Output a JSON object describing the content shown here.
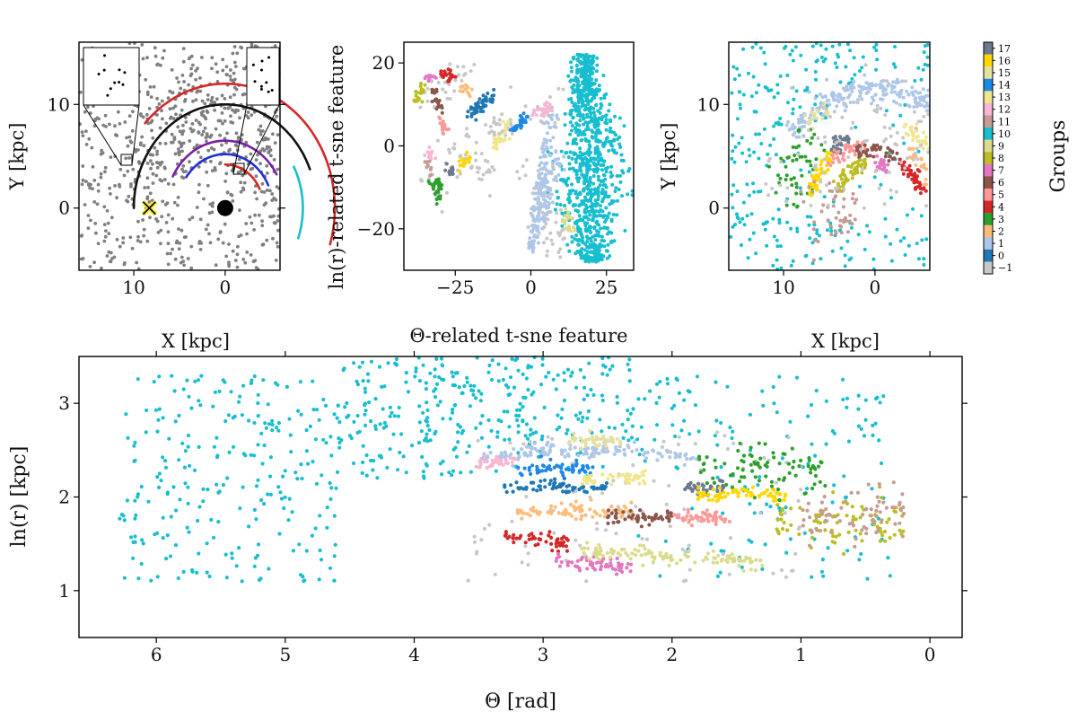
{
  "chart_data": [
    {
      "id": "xy_left",
      "type": "scatter",
      "xlabel": "X [kpc]",
      "ylabel": "Y [kpc]",
      "xlim": [
        16,
        -6
      ],
      "ylim": [
        -6,
        16
      ],
      "xticks": [
        10,
        0
      ],
      "yticks": [
        10,
        0
      ],
      "background_points": "gray field stars spread uniformly over the panel",
      "arms": [
        {
          "name": "outer arm",
          "color": "#d62728",
          "center": [
            0,
            0
          ],
          "radius": 12,
          "angle_range_deg": [
            43,
            197
          ]
        },
        {
          "name": "perseus-like arm",
          "color": "#111111",
          "center": [
            0,
            0
          ],
          "radius": 10,
          "angle_range_deg": [
            0,
            158
          ]
        },
        {
          "name": "local arm",
          "color": "#17becf",
          "center": [
            0,
            0
          ],
          "radius": 8.5,
          "angle_range_deg": [
            152,
            200
          ]
        },
        {
          "name": "purple arm",
          "color": "#7b1fa2",
          "center": [
            0,
            0
          ],
          "radius": 6.5,
          "angle_range_deg": [
            28,
            150
          ]
        },
        {
          "name": "blue arm",
          "color": "#1f2fd6",
          "center": [
            0,
            0
          ],
          "radius": 5.2,
          "angle_range_deg": [
            35,
            155
          ]
        },
        {
          "name": "inner arm",
          "color": "#d62728",
          "center": [
            0,
            0
          ],
          "radius": 4.2,
          "angle_range_deg": [
            90,
            155
          ]
        }
      ],
      "markers": [
        {
          "name": "sun",
          "shape": "x",
          "color": "#f5e616",
          "x": 8.3,
          "y": 0
        },
        {
          "name": "galactic center",
          "shape": "dot",
          "color": "#000000",
          "x": 0,
          "y": 0
        }
      ]
    },
    {
      "id": "tsne",
      "type": "scatter",
      "xlabel": "Θ-related t-sne feature",
      "ylabel": "ln(r)-related t-sne feature",
      "xlim": [
        -42,
        34
      ],
      "ylim": [
        -30,
        25
      ],
      "xticks": [
        -25,
        0,
        25
      ],
      "yticks": [
        20,
        0,
        -20
      ]
    },
    {
      "id": "xy_right",
      "type": "scatter",
      "xlabel": "X [kpc]",
      "ylabel": "Y [kpc]",
      "xlim": [
        16,
        -6
      ],
      "ylim": [
        -6,
        16
      ],
      "xticks": [
        10,
        0
      ],
      "yticks": [
        10,
        0
      ]
    },
    {
      "id": "theta_lnr",
      "type": "scatter",
      "xlabel": "Θ [rad]",
      "ylabel": "ln(r) [kpc]",
      "xlim": [
        6.6,
        -0.25
      ],
      "ylim": [
        0.5,
        3.5
      ],
      "xticks": [
        6,
        5,
        4,
        3,
        2,
        1,
        0
      ],
      "yticks": [
        3,
        2,
        1
      ],
      "groups": [
        {
          "group": 1,
          "theta_range": [
            3.5,
            1.8
          ],
          "lnr_center": 2.42
        },
        {
          "group": 17,
          "theta_range": [
            1.9,
            1.6
          ],
          "lnr_center": 2.1
        },
        {
          "group": 16,
          "theta_range": [
            1.8,
            1.1
          ],
          "lnr_center": 2.03
        },
        {
          "group": 3,
          "theta_range": [
            1.8,
            0.8
          ],
          "lnr_center": 2.3
        },
        {
          "group": 14,
          "theta_range": [
            3.2,
            2.6
          ],
          "lnr_center": 2.3
        },
        {
          "group": 13,
          "theta_range": [
            2.7,
            2.2
          ],
          "lnr_center": 2.2
        },
        {
          "group": 12,
          "theta_range": [
            3.5,
            3.2
          ],
          "lnr_center": 2.37
        },
        {
          "group": 0,
          "theta_range": [
            3.3,
            2.5
          ],
          "lnr_center": 2.1
        },
        {
          "group": 2,
          "theta_range": [
            3.2,
            2.3
          ],
          "lnr_center": 1.85
        },
        {
          "group": 6,
          "theta_range": [
            2.5,
            2.0
          ],
          "lnr_center": 1.78
        },
        {
          "group": 5,
          "theta_range": [
            2.0,
            1.5
          ],
          "lnr_center": 1.78
        },
        {
          "group": 4,
          "theta_range": [
            3.3,
            2.8
          ],
          "lnr_center": 1.58
        },
        {
          "group": 7,
          "theta_range": [
            2.9,
            2.3
          ],
          "lnr_center": 1.33
        },
        {
          "group": 9,
          "theta_range": [
            2.7,
            1.3
          ],
          "lnr_center": 1.42
        },
        {
          "group": 8,
          "theta_range": [
            1.2,
            0.2
          ],
          "lnr_center": 1.75
        },
        {
          "group": 15,
          "theta_range": [
            2.8,
            2.4
          ],
          "lnr_center": 2.6
        },
        {
          "group": 11,
          "theta_range": [
            1.0,
            0.2
          ],
          "lnr_center": 1.8
        }
      ]
    }
  ],
  "colorbar": {
    "label": "Groups",
    "levels": [
      {
        "label": "17",
        "color": "#6b7a8f"
      },
      {
        "label": "16",
        "color": "#ffd700"
      },
      {
        "label": "15",
        "color": "#e6e0a0"
      },
      {
        "label": "14",
        "color": "#1e88e5"
      },
      {
        "label": "13",
        "color": "#f0e68c"
      },
      {
        "label": "12",
        "color": "#f7b6d2"
      },
      {
        "label": "11",
        "color": "#c49c94"
      },
      {
        "label": "10",
        "color": "#17becf"
      },
      {
        "label": "9",
        "color": "#dbdb8d"
      },
      {
        "label": "8",
        "color": "#bcbd22"
      },
      {
        "label": "7",
        "color": "#e377c2"
      },
      {
        "label": "6",
        "color": "#8c564b"
      },
      {
        "label": "5",
        "color": "#ff9896"
      },
      {
        "label": "4",
        "color": "#d62728"
      },
      {
        "label": "3",
        "color": "#2ca02c"
      },
      {
        "label": "2",
        "color": "#ffbb78"
      },
      {
        "label": "1",
        "color": "#aec7e8"
      },
      {
        "label": "0",
        "color": "#1f77b4"
      },
      {
        "label": "−1",
        "color": "#c7c7c7"
      }
    ]
  }
}
